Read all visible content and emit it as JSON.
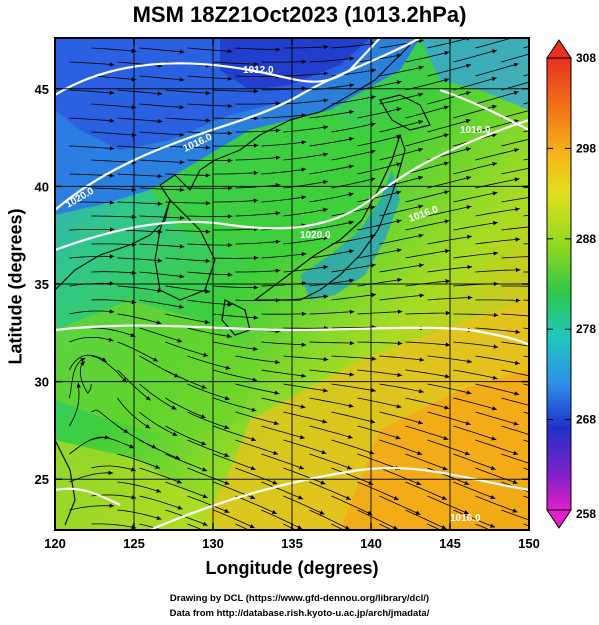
{
  "title": "MSM 18Z21Oct2023 (1013.2hPa)",
  "xlabel": "Longitude (degrees)",
  "ylabel": "Latitude  (degrees)",
  "credit_line1": "Drawing by DCL (https://www.gfd-dennou.org/library/dcl/)",
  "credit_line2": "Data from http://database.rish.kyoto-u.ac.jp/arch/jmadata/",
  "map": {
    "lon_range": [
      120,
      150
    ],
    "lat_range": [
      22.4,
      47.6
    ],
    "x_ticks": [
      "120",
      "125",
      "130",
      "135",
      "140",
      "145",
      "150"
    ],
    "y_ticks": [
      "25",
      "30",
      "35",
      "40",
      "45"
    ],
    "colorbar_labels": [
      "308",
      "298",
      "288",
      "278",
      "268",
      "258"
    ],
    "colorbar_range": [
      258,
      308
    ],
    "contour_labels": [
      "1012.0",
      "1016.0",
      "1020.0",
      "1020.0",
      "1016.0",
      "1016.0",
      "1016.0"
    ]
  },
  "colors": {
    "frame": "#000000",
    "contour": "#ffffff",
    "streamline": "#000000"
  }
}
